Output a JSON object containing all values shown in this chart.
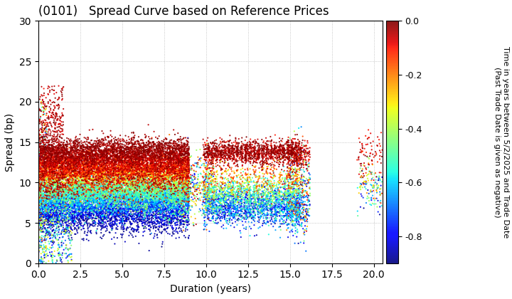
{
  "title": "(0101)   Spread Curve based on Reference Prices",
  "xlabel": "Duration (years)",
  "ylabel": "Spread (bp)",
  "colorbar_label": "Time in years between 5/2/2025 and Trade Date\n(Past Trade Date is given as negative)",
  "colorbar_ticks": [
    0.0,
    -0.2,
    -0.4,
    -0.6,
    -0.8
  ],
  "xlim": [
    0,
    20.5
  ],
  "ylim": [
    0,
    30
  ],
  "xticks": [
    0.0,
    2.5,
    5.0,
    7.5,
    10.0,
    12.5,
    15.0,
    17.5,
    20.0
  ],
  "yticks": [
    0,
    5,
    10,
    15,
    20,
    25,
    30
  ],
  "color_min": -0.9,
  "color_max": 0.0,
  "background_color": "#ffffff",
  "grid_color": "#999999",
  "seed": 42
}
